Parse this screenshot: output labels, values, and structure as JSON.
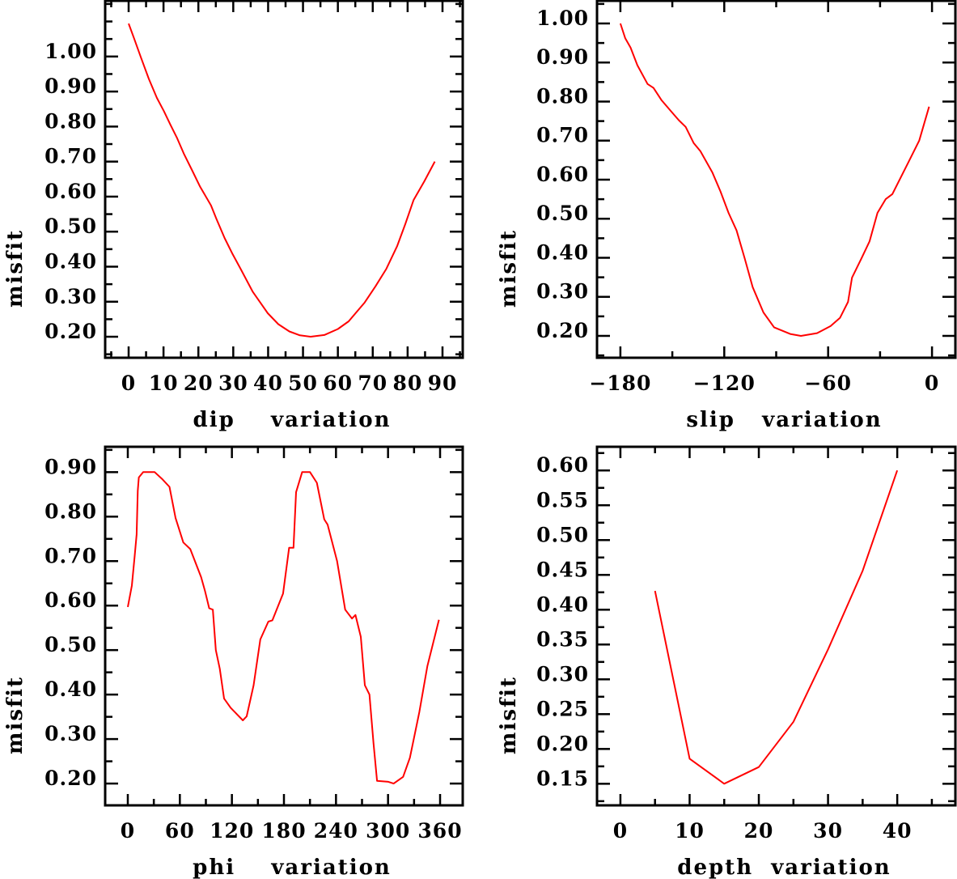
{
  "chart_data": [
    {
      "type": "line",
      "xlabel": "dip    variation",
      "ylabel": "misfit",
      "xlim": [
        -6.73,
        95.8
      ],
      "ylim": [
        0.14,
        1.159
      ],
      "xticks": {
        "values": [
          0,
          10,
          20,
          30,
          40,
          50,
          60,
          70,
          80,
          90
        ],
        "labels": [
          "0",
          "10",
          "20",
          "30",
          "40",
          "50",
          "60",
          "70",
          "80",
          "90"
        ],
        "minor_step": 5
      },
      "yticks": {
        "values": [
          1.0,
          0.9,
          0.8,
          0.7,
          0.6,
          0.5,
          0.4,
          0.3,
          0.2
        ],
        "labels": [
          "1.00",
          "0.90",
          "0.80",
          "0.70",
          "0.60",
          "0.50",
          "0.40",
          "0.30",
          "0.20"
        ],
        "minor_step": 0.05
      },
      "color": "#ff0000",
      "x": [
        0,
        1.55,
        3.5,
        5.8,
        8.1,
        10.1,
        12,
        13.9,
        15.9,
        18.2,
        20.5,
        23.6,
        25.2,
        27.5,
        29.8,
        32.1,
        35.6,
        39.9,
        42.9,
        46.1,
        49.1,
        52.2,
        56.1,
        60,
        63.1,
        67.7,
        70.8,
        73.9,
        77,
        79.3,
        81.7,
        84.8,
        87.8
      ],
      "y": [
        1.094,
        1.052,
        0.998,
        0.936,
        0.882,
        0.844,
        0.805,
        0.767,
        0.721,
        0.675,
        0.628,
        0.575,
        0.536,
        0.482,
        0.436,
        0.394,
        0.328,
        0.267,
        0.236,
        0.215,
        0.204,
        0.2,
        0.205,
        0.222,
        0.244,
        0.298,
        0.344,
        0.394,
        0.459,
        0.521,
        0.59,
        0.644,
        0.7
      ]
    },
    {
      "type": "line",
      "xlabel": "slip   variation",
      "ylabel": "misfit",
      "xlim": [
        -193.5,
        13.5
      ],
      "ylim": [
        0.144,
        1.058
      ],
      "xticks": {
        "values": [
          -180,
          -120,
          -60,
          0
        ],
        "labels": [
          "−180",
          "−120",
          "−60",
          "0"
        ],
        "minor_step": 30
      },
      "yticks": {
        "values": [
          1.0,
          0.9,
          0.8,
          0.7,
          0.6,
          0.5,
          0.4,
          0.3,
          0.2
        ],
        "labels": [
          "1.00",
          "0.90",
          "0.80",
          "0.70",
          "0.60",
          "0.50",
          "0.40",
          "0.30",
          "0.20"
        ],
        "minor_step": 0.05
      },
      "color": "#ff0000",
      "x": [
        -180,
        -177.2,
        -174.1,
        -170.2,
        -164.3,
        -160.9,
        -156.3,
        -150.9,
        -146.2,
        -142.3,
        -137.7,
        -133.8,
        -126.8,
        -122.2,
        -117.5,
        -112.9,
        -108.2,
        -103.6,
        -97.4,
        -91.2,
        -81.9,
        -75.7,
        -66.4,
        -58.6,
        -53.2,
        -48.5,
        -46.2,
        -40.8,
        -36.1,
        -31.5,
        -26.8,
        -22.9,
        -13.6,
        -7.4,
        -1.7
      ],
      "y": [
        1.0,
        0.962,
        0.938,
        0.893,
        0.845,
        0.835,
        0.804,
        0.776,
        0.752,
        0.735,
        0.694,
        0.673,
        0.618,
        0.57,
        0.515,
        0.47,
        0.398,
        0.325,
        0.26,
        0.222,
        0.205,
        0.2,
        0.207,
        0.225,
        0.246,
        0.287,
        0.349,
        0.398,
        0.442,
        0.515,
        0.55,
        0.563,
        0.645,
        0.7,
        0.787
      ]
    },
    {
      "type": "line",
      "xlabel": "phi    variation",
      "ylabel": "misfit",
      "xlim": [
        -26.1,
        386.1
      ],
      "ylim": [
        0.151,
        0.957
      ],
      "xticks": {
        "values": [
          0,
          60,
          120,
          180,
          240,
          300,
          360
        ],
        "labels": [
          "0",
          "60",
          "120",
          "180",
          "240",
          "300",
          "360"
        ],
        "minor_step": 30
      },
      "yticks": {
        "values": [
          0.9,
          0.8,
          0.7,
          0.6,
          0.5,
          0.4,
          0.3,
          0.2
        ],
        "labels": [
          "0.90",
          "0.80",
          "0.70",
          "0.60",
          "0.50",
          "0.40",
          "0.30",
          "0.20"
        ],
        "minor_step": 0.05
      },
      "color": "#ff0000",
      "x": [
        0,
        4.7,
        7.8,
        10.2,
        11.5,
        12.7,
        17.7,
        31,
        39.4,
        48,
        55,
        64,
        72,
        84.5,
        89,
        93.8,
        98,
        101.5,
        106,
        111,
        118.6,
        132.6,
        137,
        145,
        152.8,
        162,
        166.7,
        179,
        186,
        191,
        194,
        201,
        210,
        218,
        226.4,
        230.4,
        241.3,
        250.6,
        258.4,
        262.4,
        268.6,
        273.3,
        278.6,
        283.2,
        287.3,
        300.3,
        306.5,
        317.4,
        325.2,
        336,
        345.3,
        358.7
      ],
      "y": [
        0.597,
        0.645,
        0.71,
        0.76,
        0.858,
        0.888,
        0.9,
        0.9,
        0.885,
        0.867,
        0.797,
        0.742,
        0.727,
        0.664,
        0.633,
        0.594,
        0.591,
        0.5,
        0.458,
        0.391,
        0.37,
        0.342,
        0.351,
        0.421,
        0.524,
        0.564,
        0.567,
        0.627,
        0.73,
        0.73,
        0.855,
        0.9,
        0.9,
        0.876,
        0.794,
        0.782,
        0.7,
        0.591,
        0.571,
        0.579,
        0.53,
        0.421,
        0.4,
        0.291,
        0.206,
        0.204,
        0.2,
        0.215,
        0.258,
        0.36,
        0.464,
        0.568
      ]
    },
    {
      "type": "line",
      "xlabel": "depth  variation",
      "ylabel": "misfit",
      "xlim": [
        -3.38,
        48.4
      ],
      "ylim": [
        0.119,
        0.634
      ],
      "xticks": {
        "values": [
          0,
          10,
          20,
          30,
          40
        ],
        "labels": [
          "0",
          "10",
          "20",
          "30",
          "40"
        ],
        "minor_step": 5
      },
      "yticks": {
        "values": [
          0.6,
          0.55,
          0.5,
          0.45,
          0.4,
          0.35,
          0.3,
          0.25,
          0.2,
          0.15
        ],
        "labels": [
          "0.60",
          "0.55",
          "0.50",
          "0.45",
          "0.40",
          "0.35",
          "0.30",
          "0.25",
          "0.20",
          "0.15"
        ],
        "minor_step": 0.025
      },
      "color": "#ff0000",
      "x": [
        5,
        10,
        15,
        20,
        25,
        30,
        35,
        40
      ],
      "y": [
        0.427,
        0.186,
        0.15,
        0.174,
        0.239,
        0.343,
        0.456,
        0.6
      ]
    }
  ]
}
